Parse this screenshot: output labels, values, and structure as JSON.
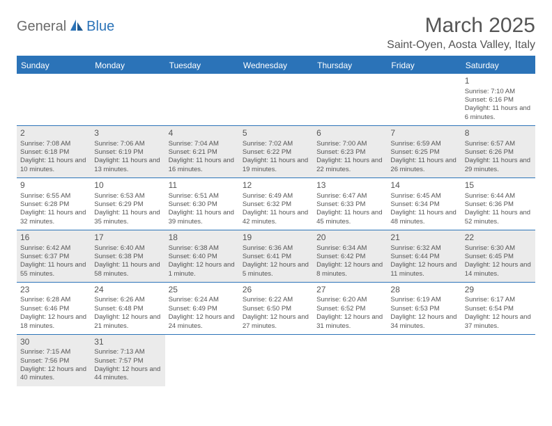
{
  "brand": {
    "part1": "General",
    "part2": "Blue"
  },
  "title": "March 2025",
  "location": "Saint-Oyen, Aosta Valley, Italy",
  "colors": {
    "accent": "#2b73b8",
    "shade": "#ebebeb",
    "text": "#555555"
  },
  "dayHeaders": [
    "Sunday",
    "Monday",
    "Tuesday",
    "Wednesday",
    "Thursday",
    "Friday",
    "Saturday"
  ],
  "weeks": [
    [
      null,
      null,
      null,
      null,
      null,
      null,
      {
        "n": "1",
        "sr": "Sunrise: 7:10 AM",
        "ss": "Sunset: 6:16 PM",
        "dl": "Daylight: 11 hours and 6 minutes."
      }
    ],
    [
      {
        "n": "2",
        "sr": "Sunrise: 7:08 AM",
        "ss": "Sunset: 6:18 PM",
        "dl": "Daylight: 11 hours and 10 minutes."
      },
      {
        "n": "3",
        "sr": "Sunrise: 7:06 AM",
        "ss": "Sunset: 6:19 PM",
        "dl": "Daylight: 11 hours and 13 minutes."
      },
      {
        "n": "4",
        "sr": "Sunrise: 7:04 AM",
        "ss": "Sunset: 6:21 PM",
        "dl": "Daylight: 11 hours and 16 minutes."
      },
      {
        "n": "5",
        "sr": "Sunrise: 7:02 AM",
        "ss": "Sunset: 6:22 PM",
        "dl": "Daylight: 11 hours and 19 minutes."
      },
      {
        "n": "6",
        "sr": "Sunrise: 7:00 AM",
        "ss": "Sunset: 6:23 PM",
        "dl": "Daylight: 11 hours and 22 minutes."
      },
      {
        "n": "7",
        "sr": "Sunrise: 6:59 AM",
        "ss": "Sunset: 6:25 PM",
        "dl": "Daylight: 11 hours and 26 minutes."
      },
      {
        "n": "8",
        "sr": "Sunrise: 6:57 AM",
        "ss": "Sunset: 6:26 PM",
        "dl": "Daylight: 11 hours and 29 minutes."
      }
    ],
    [
      {
        "n": "9",
        "sr": "Sunrise: 6:55 AM",
        "ss": "Sunset: 6:28 PM",
        "dl": "Daylight: 11 hours and 32 minutes."
      },
      {
        "n": "10",
        "sr": "Sunrise: 6:53 AM",
        "ss": "Sunset: 6:29 PM",
        "dl": "Daylight: 11 hours and 35 minutes."
      },
      {
        "n": "11",
        "sr": "Sunrise: 6:51 AM",
        "ss": "Sunset: 6:30 PM",
        "dl": "Daylight: 11 hours and 39 minutes."
      },
      {
        "n": "12",
        "sr": "Sunrise: 6:49 AM",
        "ss": "Sunset: 6:32 PM",
        "dl": "Daylight: 11 hours and 42 minutes."
      },
      {
        "n": "13",
        "sr": "Sunrise: 6:47 AM",
        "ss": "Sunset: 6:33 PM",
        "dl": "Daylight: 11 hours and 45 minutes."
      },
      {
        "n": "14",
        "sr": "Sunrise: 6:45 AM",
        "ss": "Sunset: 6:34 PM",
        "dl": "Daylight: 11 hours and 48 minutes."
      },
      {
        "n": "15",
        "sr": "Sunrise: 6:44 AM",
        "ss": "Sunset: 6:36 PM",
        "dl": "Daylight: 11 hours and 52 minutes."
      }
    ],
    [
      {
        "n": "16",
        "sr": "Sunrise: 6:42 AM",
        "ss": "Sunset: 6:37 PM",
        "dl": "Daylight: 11 hours and 55 minutes."
      },
      {
        "n": "17",
        "sr": "Sunrise: 6:40 AM",
        "ss": "Sunset: 6:38 PM",
        "dl": "Daylight: 11 hours and 58 minutes."
      },
      {
        "n": "18",
        "sr": "Sunrise: 6:38 AM",
        "ss": "Sunset: 6:40 PM",
        "dl": "Daylight: 12 hours and 1 minute."
      },
      {
        "n": "19",
        "sr": "Sunrise: 6:36 AM",
        "ss": "Sunset: 6:41 PM",
        "dl": "Daylight: 12 hours and 5 minutes."
      },
      {
        "n": "20",
        "sr": "Sunrise: 6:34 AM",
        "ss": "Sunset: 6:42 PM",
        "dl": "Daylight: 12 hours and 8 minutes."
      },
      {
        "n": "21",
        "sr": "Sunrise: 6:32 AM",
        "ss": "Sunset: 6:44 PM",
        "dl": "Daylight: 12 hours and 11 minutes."
      },
      {
        "n": "22",
        "sr": "Sunrise: 6:30 AM",
        "ss": "Sunset: 6:45 PM",
        "dl": "Daylight: 12 hours and 14 minutes."
      }
    ],
    [
      {
        "n": "23",
        "sr": "Sunrise: 6:28 AM",
        "ss": "Sunset: 6:46 PM",
        "dl": "Daylight: 12 hours and 18 minutes."
      },
      {
        "n": "24",
        "sr": "Sunrise: 6:26 AM",
        "ss": "Sunset: 6:48 PM",
        "dl": "Daylight: 12 hours and 21 minutes."
      },
      {
        "n": "25",
        "sr": "Sunrise: 6:24 AM",
        "ss": "Sunset: 6:49 PM",
        "dl": "Daylight: 12 hours and 24 minutes."
      },
      {
        "n": "26",
        "sr": "Sunrise: 6:22 AM",
        "ss": "Sunset: 6:50 PM",
        "dl": "Daylight: 12 hours and 27 minutes."
      },
      {
        "n": "27",
        "sr": "Sunrise: 6:20 AM",
        "ss": "Sunset: 6:52 PM",
        "dl": "Daylight: 12 hours and 31 minutes."
      },
      {
        "n": "28",
        "sr": "Sunrise: 6:19 AM",
        "ss": "Sunset: 6:53 PM",
        "dl": "Daylight: 12 hours and 34 minutes."
      },
      {
        "n": "29",
        "sr": "Sunrise: 6:17 AM",
        "ss": "Sunset: 6:54 PM",
        "dl": "Daylight: 12 hours and 37 minutes."
      }
    ],
    [
      {
        "n": "30",
        "sr": "Sunrise: 7:15 AM",
        "ss": "Sunset: 7:56 PM",
        "dl": "Daylight: 12 hours and 40 minutes."
      },
      {
        "n": "31",
        "sr": "Sunrise: 7:13 AM",
        "ss": "Sunset: 7:57 PM",
        "dl": "Daylight: 12 hours and 44 minutes."
      },
      null,
      null,
      null,
      null,
      null
    ]
  ]
}
